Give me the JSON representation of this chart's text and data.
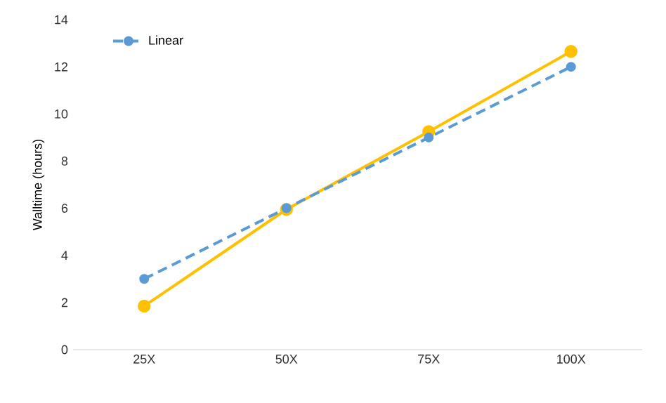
{
  "chart_data": {
    "type": "line",
    "ylabel": "Walltime (hours)",
    "categories": [
      "25X",
      "50X",
      "75X",
      "100X"
    ],
    "series": [
      {
        "color": "#ffc000",
        "values": [
          1.85,
          5.95,
          9.25,
          12.65
        ],
        "line_style": "solid"
      },
      {
        "name": "Linear",
        "color": "#5b9bd5",
        "values": [
          3,
          6,
          9,
          12
        ],
        "line_style": "dashed"
      }
    ],
    "ylim": [
      0,
      14
    ],
    "yticks": [
      0,
      2,
      4,
      6,
      8,
      10,
      12,
      14
    ],
    "marker": "circle",
    "legend": "top left",
    "grid": false
  }
}
